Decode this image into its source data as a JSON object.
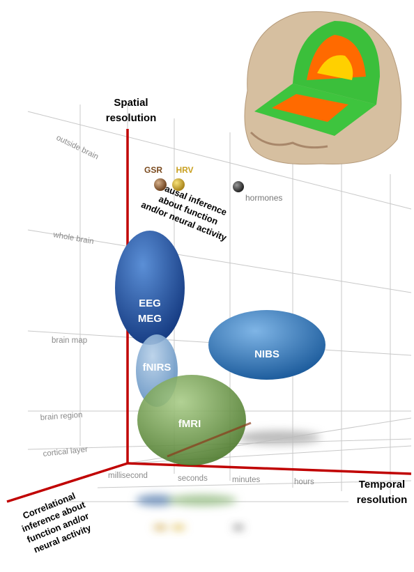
{
  "axes": {
    "vertical": {
      "lines": [
        "Spatial",
        "resolution"
      ],
      "ticks": [
        "outside brain",
        "whole brain",
        "brain map",
        "brain region",
        "cortical layer"
      ]
    },
    "horizontal": {
      "lines": [
        "Temporal",
        "resolution"
      ],
      "ticks": [
        "millisecond",
        "seconds",
        "minutes",
        "hours"
      ]
    },
    "diagonal_up": {
      "lines": [
        "Causal inference",
        "about function",
        "and/or neural activity"
      ]
    },
    "diagonal_down": {
      "lines": [
        "Correlational",
        "inference about",
        "function and/or",
        "neural activity"
      ]
    }
  },
  "nodes": [
    {
      "lines": [
        "EEG",
        "MEG"
      ]
    },
    {
      "lines": [
        "fNIRS"
      ]
    },
    {
      "lines": [
        "fMRI"
      ]
    },
    {
      "lines": [
        "NIBS"
      ]
    },
    {
      "lines": [
        "GSR"
      ]
    },
    {
      "lines": [
        "HRV"
      ]
    },
    {
      "lines": [
        "hormones"
      ]
    }
  ]
}
